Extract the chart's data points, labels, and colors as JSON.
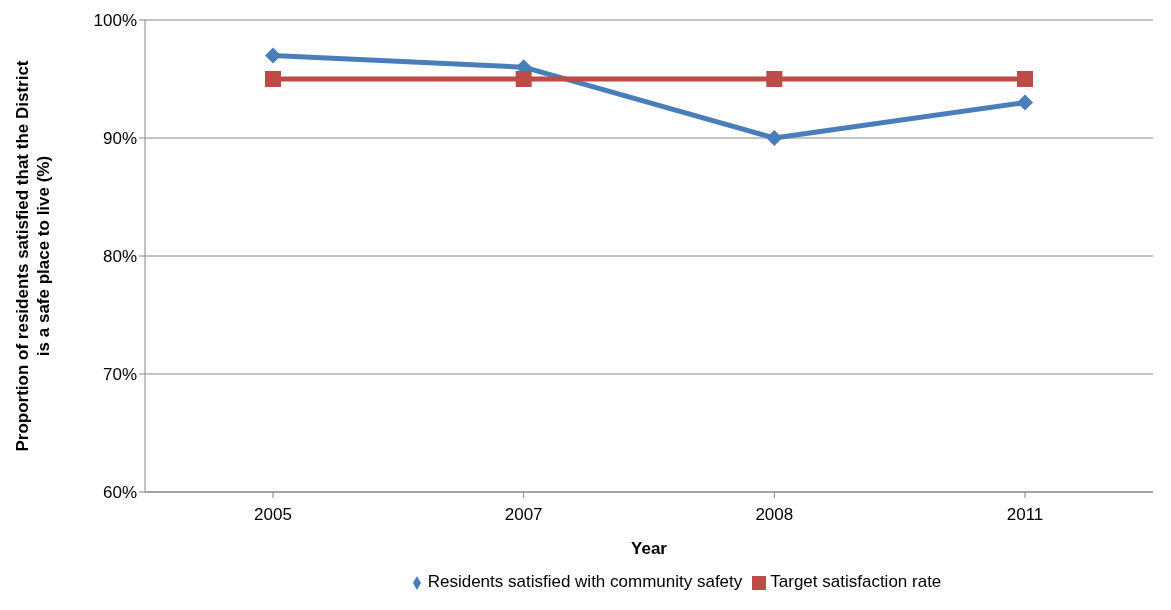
{
  "chart_data": {
    "type": "line",
    "xlabel": "Year",
    "ylabel": "Proportion of residents satisfied that the District\nis a safe place to live (%)",
    "categories": [
      "2005",
      "2007",
      "2008",
      "2011"
    ],
    "series": [
      {
        "name": "Residents satisfied with community safety",
        "color": "#4a7ebb",
        "values": [
          97,
          96,
          90,
          93
        ],
        "marker": "diamond"
      },
      {
        "name": "Target satisfaction rate",
        "color": "#be4b48",
        "values": [
          95,
          95,
          95,
          95
        ],
        "marker": "square"
      }
    ],
    "ylim": [
      60,
      100
    ],
    "yticks": [
      {
        "value": 60,
        "label": "60%"
      },
      {
        "value": 70,
        "label": "70%"
      },
      {
        "value": 80,
        "label": "80%"
      },
      {
        "value": 90,
        "label": "90%"
      },
      {
        "value": 100,
        "label": "100%"
      }
    ],
    "grid": "y",
    "legend": "bottom",
    "line_style": "solid"
  }
}
